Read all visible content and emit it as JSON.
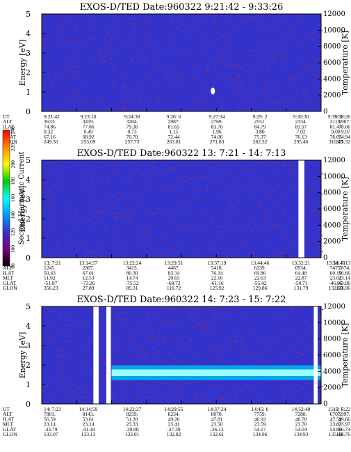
{
  "colors": {
    "background": "#3333cc",
    "speckle": "#8a2d6e",
    "band_core": "#99ffff",
    "band_edge": "#00bbee",
    "gap": "#ffffff"
  },
  "colorbar": {
    "label": "Second Harmonic Current",
    "ticks": [
      "240",
      "220",
      "200",
      "180",
      "160",
      "140",
      "120",
      "100",
      "80"
    ],
    "stops": [
      "#000000",
      "#7a0080",
      "#3333cc",
      "#0099ff",
      "#00ffff",
      "#00cc00",
      "#ffff00",
      "#ff8800",
      "#ff0000"
    ]
  },
  "chart_data": [
    {
      "type": "heatmap",
      "title": "EXOS-D/TED  Date:960322  9:21:42 - 9:33:26",
      "ylabel": "Energy [eV]",
      "y2label": "Temperature [K]",
      "ylim": [
        0,
        5
      ],
      "y2lim": [
        0,
        12000
      ],
      "yticks": [
        "0",
        "1",
        "2",
        "3",
        "4",
        "5"
      ],
      "y2ticks": [
        "0",
        "2000",
        "4000",
        "6000",
        "8000",
        "10000",
        "12000"
      ],
      "gaps": [],
      "band": null,
      "spot": {
        "time_index": 4.9,
        "energy": 1.05
      },
      "row_labels": [
        "UT",
        "ALT",
        "ILAT",
        "MLT",
        "GLAT",
        "GLON"
      ],
      "columns": [
        [
          "9:21:42",
          "3633.",
          "74.86",
          "0.32",
          "67.16",
          "249.50"
        ],
        [
          "9:23:10",
          "3419.",
          "77.06",
          "0.49",
          "68.92",
          "253.09"
        ],
        [
          "9:24:38",
          "3204.",
          "79.36",
          "0.73",
          "70.70",
          "257.73"
        ],
        [
          "9:26: 6",
          "2987.",
          "81.65",
          "1.15",
          "72.44",
          "263.81"
        ],
        [
          "9:27:34",
          "2769.",
          "83.70",
          "1.96",
          "74.06",
          "271.83"
        ],
        [
          "9:29: 2",
          "2551.",
          "84.79",
          "3.80",
          "75.37",
          "282.32"
        ],
        [
          "9:30:30",
          "2334.",
          "83.97",
          "7.02",
          "76.13",
          "295.46"
        ],
        [
          "9:31:58",
          "2119.",
          "81.47",
          "9.08",
          "76.05",
          "310.43"
        ],
        [
          "9:33:26",
          "1907.",
          "78.06",
          "9.97",
          "74.94",
          "325.32"
        ]
      ]
    },
    {
      "type": "heatmap",
      "title": "EXOS-D/TED  Date:960322  13: 7:21 - 14: 7:13",
      "ylabel": "Energy [eV]",
      "y2label": "Temperature [K]",
      "ylim": [
        0,
        5
      ],
      "y2lim": [
        0,
        12000
      ],
      "yticks": [
        "0",
        "1",
        "2",
        "3",
        "4",
        "5"
      ],
      "y2ticks": [
        "0",
        "2000",
        "4000",
        "6000",
        "8000",
        "10000",
        "12000"
      ],
      "gaps": [
        [
          7.35,
          7.52
        ]
      ],
      "band": null,
      "spot": null,
      "row_labels": [
        "UT",
        "ALT",
        "ILAT",
        "MLT",
        "GLAT",
        "GLON"
      ],
      "columns": [
        [
          "13: 7:21",
          "1245.",
          "50.43",
          "11.92",
          "-51.87",
          "356.23"
        ],
        [
          "13:14:57",
          "2307.",
          "67.01",
          "12.53",
          "-73.26",
          "27.89"
        ],
        [
          "13:22:24",
          "3413.",
          "80.30",
          "14.74",
          "-75.52",
          "89.31"
        ],
        [
          "13:29:51",
          "4467.",
          "83.34",
          "20.65",
          "-68.72",
          "116.72"
        ],
        [
          "13:37:19",
          "5418.",
          "76.34",
          "22.16",
          "-61.16",
          "125.92"
        ],
        [
          "13:44:46",
          "6239.",
          "69.86",
          "22.63",
          "-55.42",
          "129.86"
        ],
        [
          "13:52:21",
          "6934.",
          "64.48",
          "22.87",
          "-50.71",
          "131.79"
        ],
        [
          "13:59:48",
          "7475.",
          "60.19",
          "23.02",
          "-46.95",
          "132.69"
        ],
        [
          "14: 7:13",
          "7874.",
          "56.66",
          "23.14",
          "-43.86",
          "133.06"
        ]
      ]
    },
    {
      "type": "heatmap",
      "title": "EXOS-D/TED  Date:960322  14: 7:23 - 15: 7:22",
      "ylabel": "Energy [eV]",
      "y2label": "Temperature [K]",
      "ylim": [
        0,
        5
      ],
      "y2lim": [
        0,
        12000
      ],
      "yticks": [
        "0",
        "1",
        "2",
        "3",
        "4",
        "5"
      ],
      "y2ticks": [
        "0",
        "2000",
        "4000",
        "6000",
        "8000",
        "10000",
        "12000"
      ],
      "gaps": [
        [
          1.48,
          1.63
        ],
        [
          1.85,
          1.98
        ],
        [
          7.79,
          7.9
        ]
      ],
      "band": {
        "start_index": 2.0,
        "energy_mid": 1.6,
        "energy_halfwidth": 0.38
      },
      "spot": null,
      "row_labels": [
        "UT",
        "ALT",
        "ILAT",
        "MLT",
        "GLAT",
        "GLON"
      ],
      "columns": [
        [
          "14: 7:23",
          "7881.",
          "56.59",
          "23.14",
          "-43.79",
          "133.07"
        ],
        [
          "14:14:59",
          "8143.",
          "53.61",
          "23.24",
          "-41.18",
          "133.13"
        ],
        [
          "14:22:27",
          "8259.",
          "51.20",
          "23.33",
          "-39.08",
          "133.01"
        ],
        [
          "14:29:55",
          "8234.",
          "49.26",
          "23.41",
          "-37.39",
          "132.82"
        ],
        [
          "14:37:24",
          "8070.",
          "47.81",
          "23.50",
          "-36.13",
          "132.61"
        ],
        [
          "14:45: 0",
          "7759.",
          "46.92",
          "23.59",
          "54.17",
          "134.96"
        ],
        [
          "14:52:48",
          "7288.",
          "46.78",
          "23.70",
          "54.04",
          "134.93"
        ],
        [
          "15: 0: 6",
          "6707.",
          "47.59",
          "23.82",
          "54.80",
          "135.42"
        ],
        [
          "15: 7:22",
          "5997.",
          "49.66",
          "23.97",
          "56.74",
          "136.76"
        ]
      ]
    }
  ]
}
